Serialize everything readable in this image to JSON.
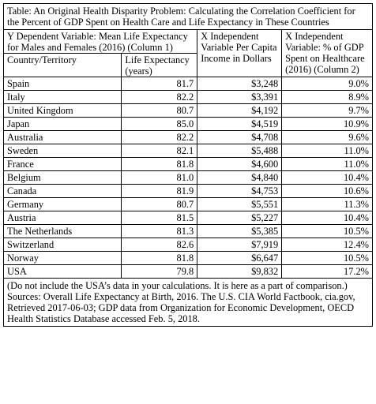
{
  "table": {
    "title": "Table: An Original Health Disparity Problem: Calculating the Correlation Coefficient for the Percent of GDP Spent on Health Care and Life Expectancy in These Countries",
    "header": {
      "y_group": "Y Dependent Variable: Mean Life Expectancy for Males and Females (2016) (Column 1)",
      "col_country": "Country/Territory",
      "col_life": "Life Expectancy (years)",
      "col_income": "X Independent Variable Per Capita Income in Dollars",
      "col_gdp": "X Independent Variable: % of GDP Spent on Healthcare (2016) (Column 2)"
    },
    "rows": [
      {
        "country": "Spain",
        "life": "81.7",
        "income": "$3,248",
        "gdp": "9.0%"
      },
      {
        "country": "Italy",
        "life": "82.2",
        "income": "$3,391",
        "gdp": "8.9%"
      },
      {
        "country": "United Kingdom",
        "life": "80.7",
        "income": "$4,192",
        "gdp": "9.7%"
      },
      {
        "country": "Japan",
        "life": "85.0",
        "income": "$4,519",
        "gdp": "10.9%"
      },
      {
        "country": "Australia",
        "life": "82.2",
        "income": "$4,708",
        "gdp": "9.6%"
      },
      {
        "country": "Sweden",
        "life": "82.1",
        "income": "$5,488",
        "gdp": "11.0%"
      },
      {
        "country": "France",
        "life": "81.8",
        "income": "$4,600",
        "gdp": "11.0%"
      },
      {
        "country": "Belgium",
        "life": "81.0",
        "income": "$4,840",
        "gdp": "10.4%"
      },
      {
        "country": "Canada",
        "life": "81.9",
        "income": "$4,753",
        "gdp": "10.6%"
      },
      {
        "country": "Germany",
        "life": "80.7",
        "income": "$5,551",
        "gdp": "11.3%"
      },
      {
        "country": "Austria",
        "life": "81.5",
        "income": "$5,227",
        "gdp": "10.4%"
      },
      {
        "country": "The Netherlands",
        "life": "81.3",
        "income": "$5,385",
        "gdp": "10.5%"
      },
      {
        "country": "Switzerland",
        "life": "82.6",
        "income": "$7,919",
        "gdp": "12.4%"
      },
      {
        "country": "Norway",
        "life": "81.8",
        "income": "$6,647",
        "gdp": "10.5%"
      },
      {
        "country": "USA",
        "life": "79.8",
        "income": "$9,832",
        "gdp": "17.2%"
      }
    ],
    "note": "(Do not include the USA’s data in your calculations. It is here as a part of comparison.)",
    "sources": "Sources: Overall Life Expectancy at Birth, 2016. The U.S. CIA World Factbook, cia.gov, Retrieved 2017-06-03; GDP data from Organization for Economic Development, OECD Health Statistics Database accessed Feb. 5, 2018."
  }
}
